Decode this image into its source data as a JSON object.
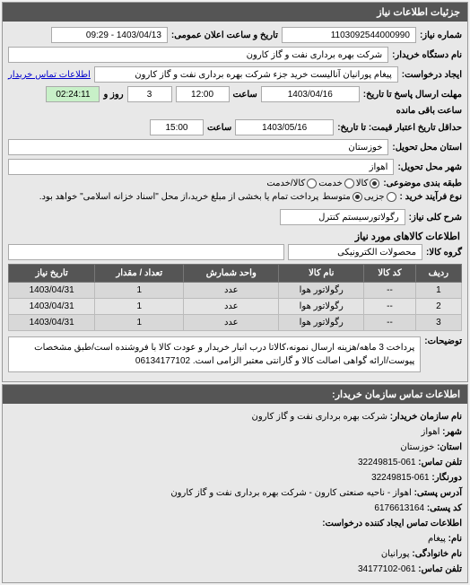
{
  "header": {
    "title": "جزئیات اطلاعات نیاز"
  },
  "fields": {
    "need_no_label": "شماره نیاز:",
    "need_no": "1103092544000990",
    "announce_label": "تاریخ و ساعت اعلان عمومی:",
    "announce_date": "1403/04/13 - 09:29",
    "buyer_org_label": "نام دستگاه خریدار:",
    "buyer_org": "شرکت بهره برداری نفت و گاز کارون",
    "requester_label": "ایجاد درخواست:",
    "requester": "پیغام پورانیان آنالیست خرید جزء شرکت بهره برداری نفت و گاز کارون",
    "contact_link": "اطلاعات تماس خریدار",
    "deadline_send_label": "مهلت ارسال پاسخ تا تاریخ:",
    "deadline_send_date": "1403/04/16",
    "deadline_send_time": "12:00",
    "time_label": "ساعت",
    "days_label": "روز و",
    "remain_label": "ساعت باقی مانده",
    "remain_days": "3",
    "remain_time": "02:24:11",
    "price_valid_label": "حداقل تاریخ اعتبار قیمت: تا تاریخ:",
    "price_valid_date": "1403/05/16",
    "price_valid_time": "15:00",
    "province_label": "استان محل تحویل:",
    "province": "خوزستان",
    "city_label": "شهر محل تحویل:",
    "city": "اهواز",
    "category_label": "طبقه بندی موضوعی:",
    "radio_goods": "کالا",
    "radio_service": "خدمت",
    "radio_both": "کالا/خدمت",
    "process_label": "نوع فرآیند خرید :",
    "radio_small": "جزیی",
    "radio_medium": "متوسط",
    "process_note": "پرداخت تمام یا بخشی از مبلغ خرید،از محل \"اسناد خزانه اسلامی\" خواهد بود.",
    "need_title_label": "شرح کلی نیاز:",
    "need_title": "رگولاتورسیستم کنترل"
  },
  "items_section": {
    "title": "اطلاعات کالاهای مورد نیاز",
    "group_label": "گروه کالا:",
    "group": "محصولات الکترونیکی",
    "columns": [
      "ردیف",
      "کد کالا",
      "نام کالا",
      "واحد شمارش",
      "تعداد / مقدار",
      "تاریخ نیاز"
    ],
    "rows": [
      [
        "1",
        "--",
        "رگولاتور هوا",
        "عدد",
        "1",
        "1403/04/31"
      ],
      [
        "2",
        "--",
        "رگولاتور هوا",
        "عدد",
        "1",
        "1403/04/31"
      ],
      [
        "3",
        "--",
        "رگولاتور هوا",
        "عدد",
        "1",
        "1403/04/31"
      ]
    ]
  },
  "description": {
    "label": "توضیحات:",
    "text": "پرداخت 3 ماهه/هزینه ارسال نمونه،کالاتا درب انبار خریدار و عودت کالا با فروشنده است/طبق مشخصات پیوست/ارائه گواهی اصالت کالا و گارانتی معتبر الزامی است. 06134177102"
  },
  "contact": {
    "title": "اطلاعات تماس سازمان خریدار:",
    "org_label": "نام سازمان خریدار:",
    "org": "شرکت بهره برداری نفت و گاز کارون",
    "city_label": "شهر:",
    "city": "اهواز",
    "province_label": "استان:",
    "province": "خوزستان",
    "phone_label": "تلفن تماس:",
    "phone": "061-32249815",
    "fax_label": "دورنگار:",
    "fax": "061-32249815",
    "address_label": "آدرس پستی:",
    "address": "اهواز - ناحیه صنعتی کارون - شرکت بهره برداری نفت و گاز کارون",
    "postal_label": "کد پستی:",
    "postal": "6176613164",
    "req_creator_label": "اطلاعات تماس ایجاد کننده درخواست:",
    "name_label": "نام:",
    "name": "پیغام",
    "family_label": "نام خانوادگی:",
    "family": "پورانیان",
    "phone2_label": "تلفن تماس:",
    "phone2": "061-34177102"
  }
}
